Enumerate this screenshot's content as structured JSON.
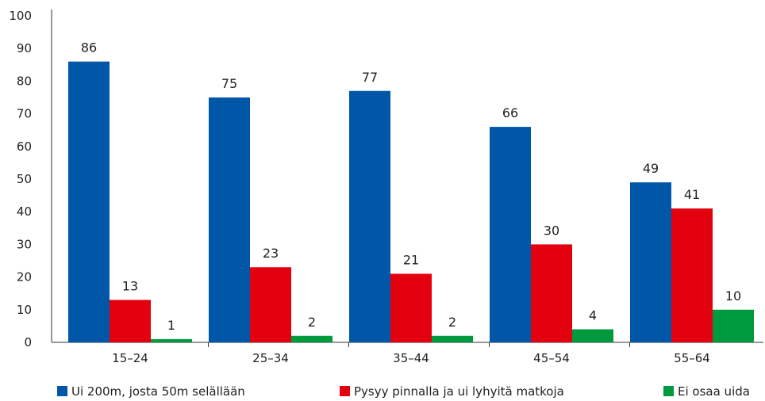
{
  "chart_data": {
    "type": "bar",
    "categories": [
      "15–24",
      "25–34",
      "35–44",
      "45–54",
      "55–64"
    ],
    "series": [
      {
        "name": "Ui 200m, josta 50m selällään",
        "color": "#0057a8",
        "values": [
          86,
          75,
          77,
          66,
          49
        ]
      },
      {
        "name": "Pysyy pinnalla ja ui lyhyitä matkoja",
        "color": "#e3000f",
        "values": [
          13,
          23,
          21,
          30,
          41
        ]
      },
      {
        "name": "Ei osaa uida",
        "color": "#009a3e",
        "values": [
          1,
          2,
          2,
          4,
          10
        ]
      }
    ],
    "ylim": [
      0,
      100
    ],
    "yticks": [
      0,
      10,
      20,
      30,
      40,
      50,
      60,
      70,
      80,
      90,
      100
    ],
    "grid": false,
    "legend": "bottom"
  }
}
